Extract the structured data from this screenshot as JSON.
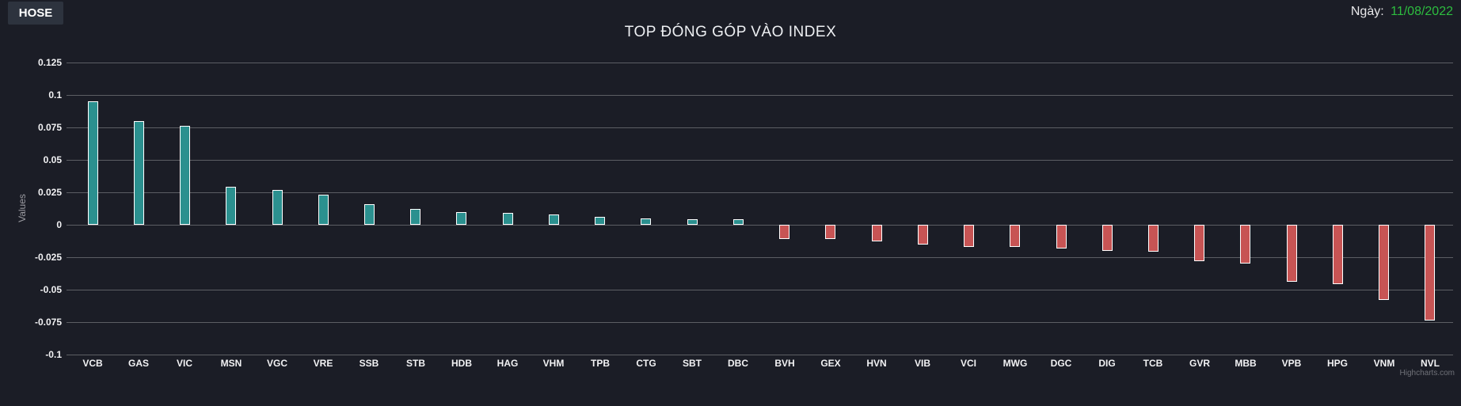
{
  "page": {
    "background_color": "#1b1d26",
    "button_background_color": "#2d333e",
    "grid_color": "#5c5e64"
  },
  "header": {
    "exchange_button_label": "HOSE",
    "date_label": "Ngày:",
    "date_value": "11/08/2022",
    "date_value_color": "#2dbd3f"
  },
  "chart_data": {
    "type": "bar",
    "title": "TOP ĐÓNG GÓP VÀO INDEX",
    "xlabel": "",
    "ylabel": "Values",
    "legend": "none",
    "grid": true,
    "ylim": [
      -0.1,
      0.125
    ],
    "yticks": [
      0.125,
      0.1,
      0.075,
      0.05,
      0.025,
      0,
      -0.025,
      -0.05,
      -0.075,
      -0.1
    ],
    "categories": [
      "VCB",
      "GAS",
      "VIC",
      "MSN",
      "VGC",
      "VRE",
      "SSB",
      "STB",
      "HDB",
      "HAG",
      "VHM",
      "TPB",
      "CTG",
      "SBT",
      "DBC",
      "BVH",
      "GEX",
      "HVN",
      "VIB",
      "VCI",
      "MWG",
      "DGC",
      "DIG",
      "TCB",
      "GVR",
      "MBB",
      "VPB",
      "HPG",
      "VNM",
      "NVL"
    ],
    "values": [
      0.095,
      0.08,
      0.076,
      0.029,
      0.027,
      0.023,
      0.016,
      0.012,
      0.01,
      0.009,
      0.008,
      0.006,
      0.005,
      0.0045,
      0.004,
      -0.011,
      -0.011,
      -0.013,
      -0.015,
      -0.017,
      -0.017,
      -0.018,
      -0.02,
      -0.021,
      -0.028,
      -0.03,
      -0.044,
      -0.046,
      -0.058,
      -0.074
    ],
    "positive_color": "#2b908f",
    "negative_color": "#c75454",
    "bar_border_color": "#ffffff",
    "credits": "Highcharts.com"
  }
}
